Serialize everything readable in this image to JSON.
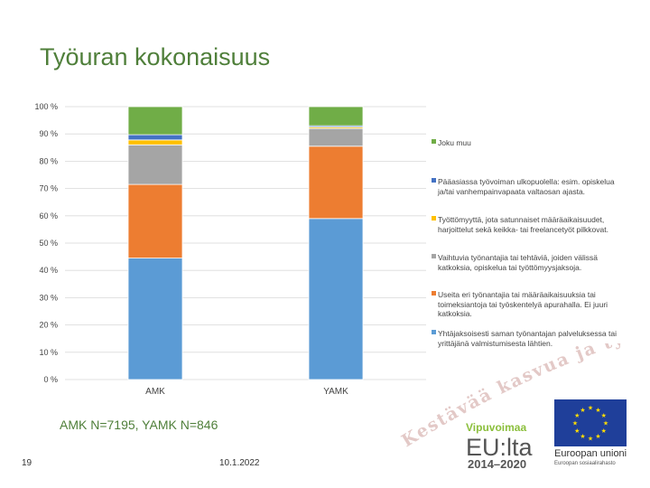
{
  "title": "Työuran kokonaisuus",
  "note": "AMK N=7195, YAMK N=846",
  "page_number": "19",
  "date": "10.1.2022",
  "slogan": "Kestävää kasvua ja työtä -ohjelma",
  "logo": {
    "vipuvoima": "Vipuvoimaa",
    "eu": "EU:lta",
    "years": "2014–2020",
    "union": "Euroopan unioni",
    "union_sub": "Euroopan sosiaalirahasto"
  },
  "chart_data": {
    "type": "bar",
    "stacked": true,
    "categories": [
      "AMK",
      "YAMK"
    ],
    "ylim": [
      0,
      100
    ],
    "yticks": [
      "0 %",
      "10 %",
      "20 %",
      "30 %",
      "40 %",
      "50 %",
      "60 %",
      "70 %",
      "80 %",
      "90 %",
      "100 %"
    ],
    "grid": true,
    "legend_position": "right",
    "series": [
      {
        "name": "Yhtäjaksoisesti saman työnantajan palveluksessa tai yrittäjänä valmistumisesta lähtien.",
        "color": "#5b9bd5",
        "values": [
          44.5,
          59.0
        ]
      },
      {
        "name": "Useita eri työnantajia tai määräaikaisuuksia tai toimeksiantoja tai työskentelyä apurahalla. Ei juuri katkoksia.",
        "color": "#ed7d31",
        "values": [
          27.0,
          26.5
        ]
      },
      {
        "name": "Vaihtuvia työnantajia tai tehtäviä, joiden välissä katkoksia, opiskelua tai työttömyysjaksoja.",
        "color": "#a5a5a5",
        "values": [
          14.5,
          6.5
        ]
      },
      {
        "name": "Työttömyyttä, jota satunnaiset määräaikaisuudet, harjoittelut sekä keikka- tai freelancetyöt pilkkovat.",
        "color": "#ffc000",
        "values": [
          1.8,
          0.5
        ]
      },
      {
        "name": "Pääasiassa työvoiman ulkopuolella: esim. opiskelua ja/tai vanhempainvapaata valtaosan ajasta.",
        "color": "#4472c4",
        "values": [
          1.9,
          0.5
        ]
      },
      {
        "name": "Joku muu",
        "color": "#70ad47",
        "values": [
          10.3,
          7.0
        ]
      }
    ]
  }
}
